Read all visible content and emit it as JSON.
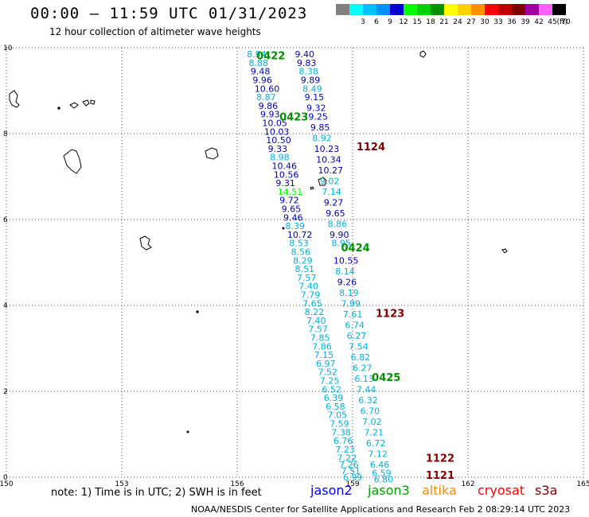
{
  "title": "00:00 — 11:59 UTC 01/31/2023",
  "subtitle": "12 hour collection of altimeter wave heights",
  "legend": {
    "unit": "(ft)",
    "bins": [
      {
        "color": "#808080",
        "label": ""
      },
      {
        "color": "#00ffff",
        "label": "3"
      },
      {
        "color": "#00c0ff",
        "label": "6"
      },
      {
        "color": "#0090ff",
        "label": "9"
      },
      {
        "color": "#0000d0",
        "label": "12"
      },
      {
        "color": "#00ff00",
        "label": "15"
      },
      {
        "color": "#00d000",
        "label": "18"
      },
      {
        "color": "#009000",
        "label": "21"
      },
      {
        "color": "#ffff00",
        "label": "24"
      },
      {
        "color": "#ffd000",
        "label": "27"
      },
      {
        "color": "#ff9000",
        "label": "30"
      },
      {
        "color": "#ff0000",
        "label": "33"
      },
      {
        "color": "#c00000",
        "label": "36"
      },
      {
        "color": "#800000",
        "label": "39"
      },
      {
        "color": "#a000a0",
        "label": "42"
      },
      {
        "color": "#ff60ff",
        "label": "45"
      },
      {
        "color": "#000000",
        "label": "70"
      }
    ]
  },
  "map": {
    "lon_range": [
      150,
      165
    ],
    "lat_range": [
      0,
      10
    ],
    "x_ticks": [
      {
        "value": 150,
        "label": "150"
      },
      {
        "value": 153,
        "label": "153"
      },
      {
        "value": 156,
        "label": "156"
      },
      {
        "value": 159,
        "label": "159"
      },
      {
        "value": 162,
        "label": "162"
      },
      {
        "value": 165,
        "label": "165"
      }
    ],
    "y_ticks": [
      {
        "value": 0,
        "label": "0"
      },
      {
        "value": 2,
        "label": "2"
      },
      {
        "value": 4,
        "label": "4"
      },
      {
        "value": 6,
        "label": "6"
      },
      {
        "value": 8,
        "label": "8"
      },
      {
        "value": 10,
        "label": "10"
      }
    ],
    "grid": "dotted"
  },
  "colors": {
    "cyan_band": "#00b0e0",
    "blue_band": "#0000c0",
    "green_band": "#00ff00",
    "jason3_time": "#009000",
    "cryosat_time": "#800000"
  },
  "track_labels": [
    {
      "text": "0422",
      "lon": 156.5,
      "lat": 9.82,
      "color": "#009000"
    },
    {
      "text": "0423",
      "lon": 157.1,
      "lat": 8.4,
      "color": "#009000"
    },
    {
      "text": "1124",
      "lon": 159.1,
      "lat": 7.7,
      "color": "#800000"
    },
    {
      "text": "0424",
      "lon": 158.7,
      "lat": 5.35,
      "color": "#009000"
    },
    {
      "text": "1123",
      "lon": 159.6,
      "lat": 3.82,
      "color": "#800000"
    },
    {
      "text": "0425",
      "lon": 159.5,
      "lat": 2.33,
      "color": "#009000"
    },
    {
      "text": "1122",
      "lon": 160.9,
      "lat": 0.45,
      "color": "#800000"
    },
    {
      "text": "1121",
      "lon": 160.9,
      "lat": 0.06,
      "color": "#800000"
    }
  ],
  "chart_data": {
    "type": "scatter",
    "title": "00:00 — 11:59 UTC 01/31/2023",
    "subtitle": "12 hour collection of altimeter wave heights",
    "xlim": [
      150,
      165
    ],
    "ylim": [
      0,
      10
    ],
    "points": [
      {
        "lon": 156.25,
        "lat": 9.85,
        "v": "8.94",
        "c": "#00b0e0"
      },
      {
        "lon": 156.3,
        "lat": 9.65,
        "v": "8.88",
        "c": "#00b0e0"
      },
      {
        "lon": 156.35,
        "lat": 9.45,
        "v": "9.48",
        "c": "#0000c0"
      },
      {
        "lon": 156.4,
        "lat": 9.25,
        "v": "9.96",
        "c": "#0000c0"
      },
      {
        "lon": 156.45,
        "lat": 9.05,
        "v": "10.60",
        "c": "#0000c0"
      },
      {
        "lon": 156.5,
        "lat": 8.85,
        "v": "8.87",
        "c": "#00b0e0"
      },
      {
        "lon": 156.55,
        "lat": 8.65,
        "v": "9.86",
        "c": "#0000c0"
      },
      {
        "lon": 156.6,
        "lat": 8.45,
        "v": "9.93",
        "c": "#0000c0"
      },
      {
        "lon": 156.65,
        "lat": 8.25,
        "v": "10.05",
        "c": "#0000c0"
      },
      {
        "lon": 156.7,
        "lat": 8.05,
        "v": "10.03",
        "c": "#0000c0"
      },
      {
        "lon": 156.75,
        "lat": 7.85,
        "v": "10.50",
        "c": "#0000c0"
      },
      {
        "lon": 156.8,
        "lat": 7.65,
        "v": "9.33",
        "c": "#0000c0"
      },
      {
        "lon": 156.85,
        "lat": 7.45,
        "v": "8.98",
        "c": "#00b0e0"
      },
      {
        "lon": 156.9,
        "lat": 7.25,
        "v": "10.46",
        "c": "#0000c0"
      },
      {
        "lon": 156.95,
        "lat": 7.05,
        "v": "10.56",
        "c": "#0000c0"
      },
      {
        "lon": 157.0,
        "lat": 6.85,
        "v": "9.31",
        "c": "#0000c0"
      },
      {
        "lon": 157.05,
        "lat": 6.65,
        "v": "14.51",
        "c": "#00ff00"
      },
      {
        "lon": 157.1,
        "lat": 6.45,
        "v": "9.72",
        "c": "#0000c0"
      },
      {
        "lon": 157.15,
        "lat": 6.25,
        "v": "9.65",
        "c": "#0000c0"
      },
      {
        "lon": 157.2,
        "lat": 6.05,
        "v": "9.46",
        "c": "#0000c0"
      },
      {
        "lon": 157.25,
        "lat": 5.85,
        "v": "8.39",
        "c": "#00b0e0"
      },
      {
        "lon": 157.3,
        "lat": 5.65,
        "v": "10.72",
        "c": "#0000c0"
      },
      {
        "lon": 157.35,
        "lat": 5.45,
        "v": "8.53",
        "c": "#00b0e0"
      },
      {
        "lon": 157.4,
        "lat": 5.25,
        "v": "8.56",
        "c": "#00b0e0"
      },
      {
        "lon": 157.45,
        "lat": 5.05,
        "v": "8.29",
        "c": "#00b0e0"
      },
      {
        "lon": 157.5,
        "lat": 4.85,
        "v": "8.51",
        "c": "#00b0e0"
      },
      {
        "lon": 157.55,
        "lat": 4.65,
        "v": "7.57",
        "c": "#00b0e0"
      },
      {
        "lon": 157.6,
        "lat": 4.45,
        "v": "7.40",
        "c": "#00b0e0"
      },
      {
        "lon": 157.65,
        "lat": 4.25,
        "v": "7.79",
        "c": "#00b0e0"
      },
      {
        "lon": 157.7,
        "lat": 4.05,
        "v": "7.65",
        "c": "#00b0e0"
      },
      {
        "lon": 157.75,
        "lat": 3.85,
        "v": "8.22",
        "c": "#00b0e0"
      },
      {
        "lon": 157.8,
        "lat": 3.65,
        "v": "7.40",
        "c": "#00b0e0"
      },
      {
        "lon": 157.85,
        "lat": 3.45,
        "v": "7.57",
        "c": "#00b0e0"
      },
      {
        "lon": 157.9,
        "lat": 3.25,
        "v": "7.85",
        "c": "#00b0e0"
      },
      {
        "lon": 157.95,
        "lat": 3.05,
        "v": "7.86",
        "c": "#00b0e0"
      },
      {
        "lon": 158.0,
        "lat": 2.85,
        "v": "7.15",
        "c": "#00b0e0"
      },
      {
        "lon": 158.05,
        "lat": 2.65,
        "v": "6.97",
        "c": "#00b0e0"
      },
      {
        "lon": 158.1,
        "lat": 2.45,
        "v": "7.52",
        "c": "#00b0e0"
      },
      {
        "lon": 158.15,
        "lat": 2.25,
        "v": "7.25",
        "c": "#00b0e0"
      },
      {
        "lon": 158.2,
        "lat": 2.05,
        "v": "6.52",
        "c": "#00b0e0"
      },
      {
        "lon": 158.25,
        "lat": 1.85,
        "v": "6.39",
        "c": "#00b0e0"
      },
      {
        "lon": 158.3,
        "lat": 1.65,
        "v": "6.58",
        "c": "#00b0e0"
      },
      {
        "lon": 158.35,
        "lat": 1.45,
        "v": "7.05",
        "c": "#00b0e0"
      },
      {
        "lon": 158.4,
        "lat": 1.25,
        "v": "7.59",
        "c": "#00b0e0"
      },
      {
        "lon": 158.45,
        "lat": 1.05,
        "v": "7.38",
        "c": "#00b0e0"
      },
      {
        "lon": 158.5,
        "lat": 0.85,
        "v": "6.76",
        "c": "#00b0e0"
      },
      {
        "lon": 158.55,
        "lat": 0.65,
        "v": "7.23",
        "c": "#00b0e0"
      },
      {
        "lon": 158.6,
        "lat": 0.45,
        "v": "7.22",
        "c": "#00b0e0"
      },
      {
        "lon": 158.65,
        "lat": 0.3,
        "v": "7.26",
        "c": "#00b0e0"
      },
      {
        "lon": 158.7,
        "lat": 0.15,
        "v": "7.51",
        "c": "#00b0e0"
      },
      {
        "lon": 158.75,
        "lat": 0.0,
        "v": "6.99",
        "c": "#00b0e0"
      },
      {
        "lon": 157.5,
        "lat": 9.85,
        "v": "9.40",
        "c": "#0000c0"
      },
      {
        "lon": 157.55,
        "lat": 9.65,
        "v": "9.83",
        "c": "#0000c0"
      },
      {
        "lon": 157.6,
        "lat": 9.45,
        "v": "8.38",
        "c": "#00b0e0"
      },
      {
        "lon": 157.65,
        "lat": 9.25,
        "v": "9.89",
        "c": "#0000c0"
      },
      {
        "lon": 157.7,
        "lat": 9.05,
        "v": "8.49",
        "c": "#00b0e0"
      },
      {
        "lon": 157.75,
        "lat": 8.85,
        "v": "9.15",
        "c": "#0000c0"
      },
      {
        "lon": 157.8,
        "lat": 8.6,
        "v": "9.32",
        "c": "#0000c0"
      },
      {
        "lon": 157.85,
        "lat": 8.4,
        "v": "9.25",
        "c": "#0000c0"
      },
      {
        "lon": 157.9,
        "lat": 8.15,
        "v": "9.85",
        "c": "#0000c0"
      },
      {
        "lon": 157.95,
        "lat": 7.9,
        "v": "8.92",
        "c": "#00b0e0"
      },
      {
        "lon": 158.0,
        "lat": 7.65,
        "v": "10.23",
        "c": "#0000c0"
      },
      {
        "lon": 158.05,
        "lat": 7.4,
        "v": "10.34",
        "c": "#0000c0"
      },
      {
        "lon": 158.1,
        "lat": 7.15,
        "v": "10.27",
        "c": "#0000c0"
      },
      {
        "lon": 158.15,
        "lat": 6.9,
        "v": "9.02",
        "c": "#00b0e0"
      },
      {
        "lon": 158.2,
        "lat": 6.65,
        "v": "7.14",
        "c": "#00b0e0"
      },
      {
        "lon": 158.25,
        "lat": 6.4,
        "v": "9.27",
        "c": "#0000c0"
      },
      {
        "lon": 158.3,
        "lat": 6.15,
        "v": "9.65",
        "c": "#0000c0"
      },
      {
        "lon": 158.35,
        "lat": 5.9,
        "v": "8.86",
        "c": "#00b0e0"
      },
      {
        "lon": 158.4,
        "lat": 5.65,
        "v": "9.90",
        "c": "#0000c0"
      },
      {
        "lon": 158.45,
        "lat": 5.45,
        "v": "8.95",
        "c": "#00b0e0"
      },
      {
        "lon": 158.5,
        "lat": 5.05,
        "v": "10.55",
        "c": "#0000c0"
      },
      {
        "lon": 158.55,
        "lat": 4.8,
        "v": "8.14",
        "c": "#00b0e0"
      },
      {
        "lon": 158.6,
        "lat": 4.55,
        "v": "9.26",
        "c": "#0000c0"
      },
      {
        "lon": 158.65,
        "lat": 4.3,
        "v": "8.19",
        "c": "#00b0e0"
      },
      {
        "lon": 158.7,
        "lat": 4.05,
        "v": "7.99",
        "c": "#00b0e0"
      },
      {
        "lon": 158.75,
        "lat": 3.8,
        "v": "7.61",
        "c": "#00b0e0"
      },
      {
        "lon": 158.8,
        "lat": 3.55,
        "v": "6.74",
        "c": "#00b0e0"
      },
      {
        "lon": 158.85,
        "lat": 3.3,
        "v": "6.27",
        "c": "#00b0e0"
      },
      {
        "lon": 158.9,
        "lat": 3.05,
        "v": "7.54",
        "c": "#00b0e0"
      },
      {
        "lon": 158.95,
        "lat": 2.8,
        "v": "6.82",
        "c": "#00b0e0"
      },
      {
        "lon": 159.0,
        "lat": 2.55,
        "v": "6.27",
        "c": "#00b0e0"
      },
      {
        "lon": 159.05,
        "lat": 2.3,
        "v": "6.13",
        "c": "#00b0e0"
      },
      {
        "lon": 159.1,
        "lat": 2.05,
        "v": "7.44",
        "c": "#00b0e0"
      },
      {
        "lon": 159.15,
        "lat": 1.8,
        "v": "6.32",
        "c": "#00b0e0"
      },
      {
        "lon": 159.2,
        "lat": 1.55,
        "v": "6.70",
        "c": "#00b0e0"
      },
      {
        "lon": 159.25,
        "lat": 1.3,
        "v": "7.02",
        "c": "#00b0e0"
      },
      {
        "lon": 159.3,
        "lat": 1.05,
        "v": "7.21",
        "c": "#00b0e0"
      },
      {
        "lon": 159.35,
        "lat": 0.8,
        "v": "6.72",
        "c": "#00b0e0"
      },
      {
        "lon": 159.4,
        "lat": 0.55,
        "v": "7.12",
        "c": "#00b0e0"
      },
      {
        "lon": 159.45,
        "lat": 0.3,
        "v": "6.46",
        "c": "#00b0e0"
      },
      {
        "lon": 159.5,
        "lat": 0.1,
        "v": "6.59",
        "c": "#00b0e0"
      },
      {
        "lon": 159.55,
        "lat": -0.05,
        "v": "6.80",
        "c": "#00b0e0"
      }
    ]
  },
  "footer": {
    "note": "note: 1) Time is in UTC; 2) SWH is in feet",
    "satellites": [
      {
        "name": "jason2",
        "color": "#0000ff"
      },
      {
        "name": "jason3",
        "color": "#00a000"
      },
      {
        "name": "altika",
        "color": "#ff8c00"
      },
      {
        "name": "cryosat",
        "color": "#ff0000"
      },
      {
        "name": "s3a",
        "color": "#800000"
      }
    ],
    "credit": "NOAA/NESDIS Center for Satellite Applications and Research    Feb  2 08:29:14 UTC 2023"
  }
}
